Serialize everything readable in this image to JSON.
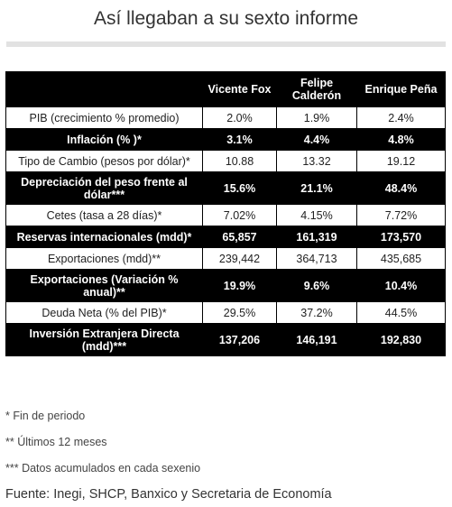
{
  "title": "Así llegaban a su sexto informe",
  "table": {
    "headers": [
      "Vicente Fox",
      "Felipe Calderón",
      "Enrique Peña"
    ],
    "rows": [
      {
        "label": "PIB (crecimiento % promedio)",
        "values": [
          "2.0%",
          "1.9%",
          "2.4%"
        ],
        "style": "light"
      },
      {
        "label": "Inflación (% )*",
        "values": [
          "3.1%",
          "4.4%",
          "4.8%"
        ],
        "style": "dark"
      },
      {
        "label": "Tipo de Cambio (pesos por dólar)*",
        "values": [
          "10.88",
          "13.32",
          "19.12"
        ],
        "style": "light"
      },
      {
        "label": "Depreciación del peso frente al dólar***",
        "values": [
          "15.6%",
          "21.1%",
          "48.4%"
        ],
        "style": "dark"
      },
      {
        "label": "Cetes (tasa a 28 días)*",
        "values": [
          "7.02%",
          "4.15%",
          "7.72%"
        ],
        "style": "light"
      },
      {
        "label": "Reservas internacionales (mdd)*",
        "values": [
          "65,857",
          "161,319",
          "173,570"
        ],
        "style": "dark"
      },
      {
        "label": "Exportaciones (mdd)**",
        "values": [
          "239,442",
          "364,713",
          "435,685"
        ],
        "style": "light"
      },
      {
        "label": "Exportaciones (Variación % anual)**",
        "values": [
          "19.9%",
          "9.6%",
          "10.4%"
        ],
        "style": "dark"
      },
      {
        "label": "Deuda Neta (% del PIB)*",
        "values": [
          "29.5%",
          "37.2%",
          "44.5%"
        ],
        "style": "light"
      },
      {
        "label": "Inversión Extranjera Directa (mdd)***",
        "values": [
          "137,206",
          "146,191",
          "192,830"
        ],
        "style": "dark"
      }
    ]
  },
  "notes": [
    "* Fin de periodo",
    "** Últimos 12 meses",
    "*** Datos acumulados en cada sexenio"
  ],
  "source": "Fuente: Inegi,  SHCP, Banxico y Secretaria de Economía"
}
